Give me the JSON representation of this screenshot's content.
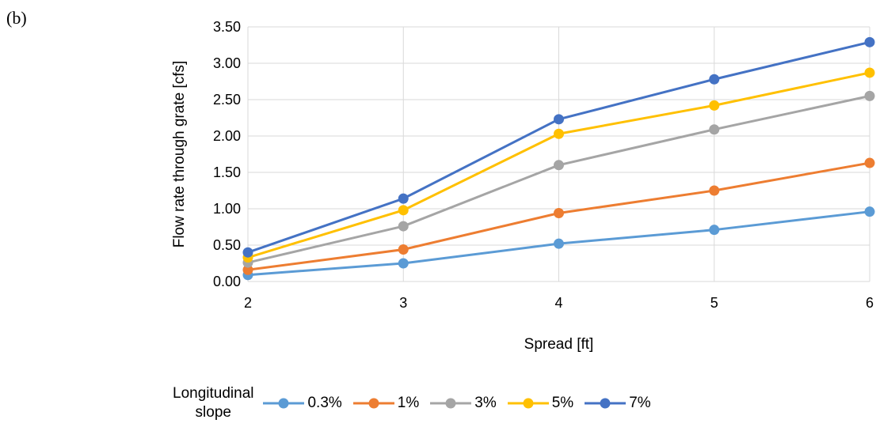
{
  "panel_label": "(b)",
  "chart_data": {
    "type": "line",
    "x": [
      2,
      3,
      4,
      5,
      6
    ],
    "xlabel": "Spread [ft]",
    "ylabel": "Flow rate through grate [cfs]",
    "xlim": [
      2,
      6
    ],
    "ylim": [
      0,
      3.5
    ],
    "x_ticks": [
      "2",
      "3",
      "4",
      "5",
      "6"
    ],
    "y_ticks": [
      "0.00",
      "0.50",
      "1.00",
      "1.50",
      "2.00",
      "2.50",
      "3.00",
      "3.50"
    ],
    "grid": true,
    "legend_title": [
      "Longitudinal",
      "slope"
    ],
    "legend_position": "bottom",
    "series": [
      {
        "name": "0.3%",
        "color": "#5b9bd5",
        "values": [
          0.09,
          0.25,
          0.52,
          0.71,
          0.96
        ]
      },
      {
        "name": "1%",
        "color": "#ed7d31",
        "values": [
          0.16,
          0.44,
          0.94,
          1.25,
          1.63
        ]
      },
      {
        "name": "3%",
        "color": "#a5a5a5",
        "values": [
          0.26,
          0.76,
          1.6,
          2.09,
          2.55
        ]
      },
      {
        "name": "5%",
        "color": "#ffc000",
        "values": [
          0.33,
          0.98,
          2.03,
          2.42,
          2.87
        ]
      },
      {
        "name": "7%",
        "color": "#4472c4",
        "values": [
          0.4,
          1.14,
          2.23,
          2.78,
          3.29
        ]
      }
    ]
  }
}
